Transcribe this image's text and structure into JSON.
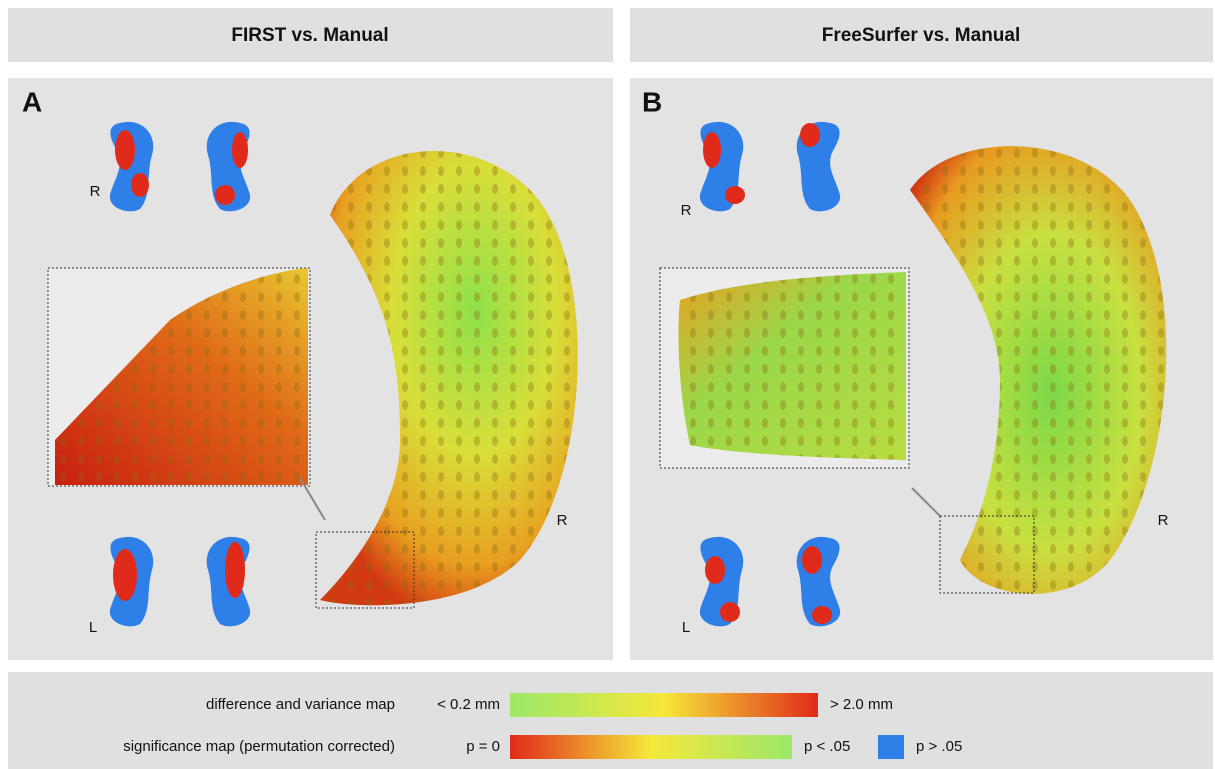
{
  "panels": [
    {
      "header": "FIRST vs. Manual",
      "letter": "A",
      "small_top_label": "R",
      "small_bottom_label": "L",
      "large_label": "R"
    },
    {
      "header": "FreeSurfer vs. Manual",
      "letter": "B",
      "small_top_label": "R",
      "small_bottom_label": "L",
      "large_label": "R"
    }
  ],
  "legend": {
    "rows": [
      {
        "label": "difference and variance map",
        "min": "< 0.2 mm",
        "max": "> 2.0 mm"
      },
      {
        "label": "significance map (permutation corrected)",
        "min": "p = 0",
        "max": "p < .05",
        "extra": "p > .05"
      }
    ]
  }
}
